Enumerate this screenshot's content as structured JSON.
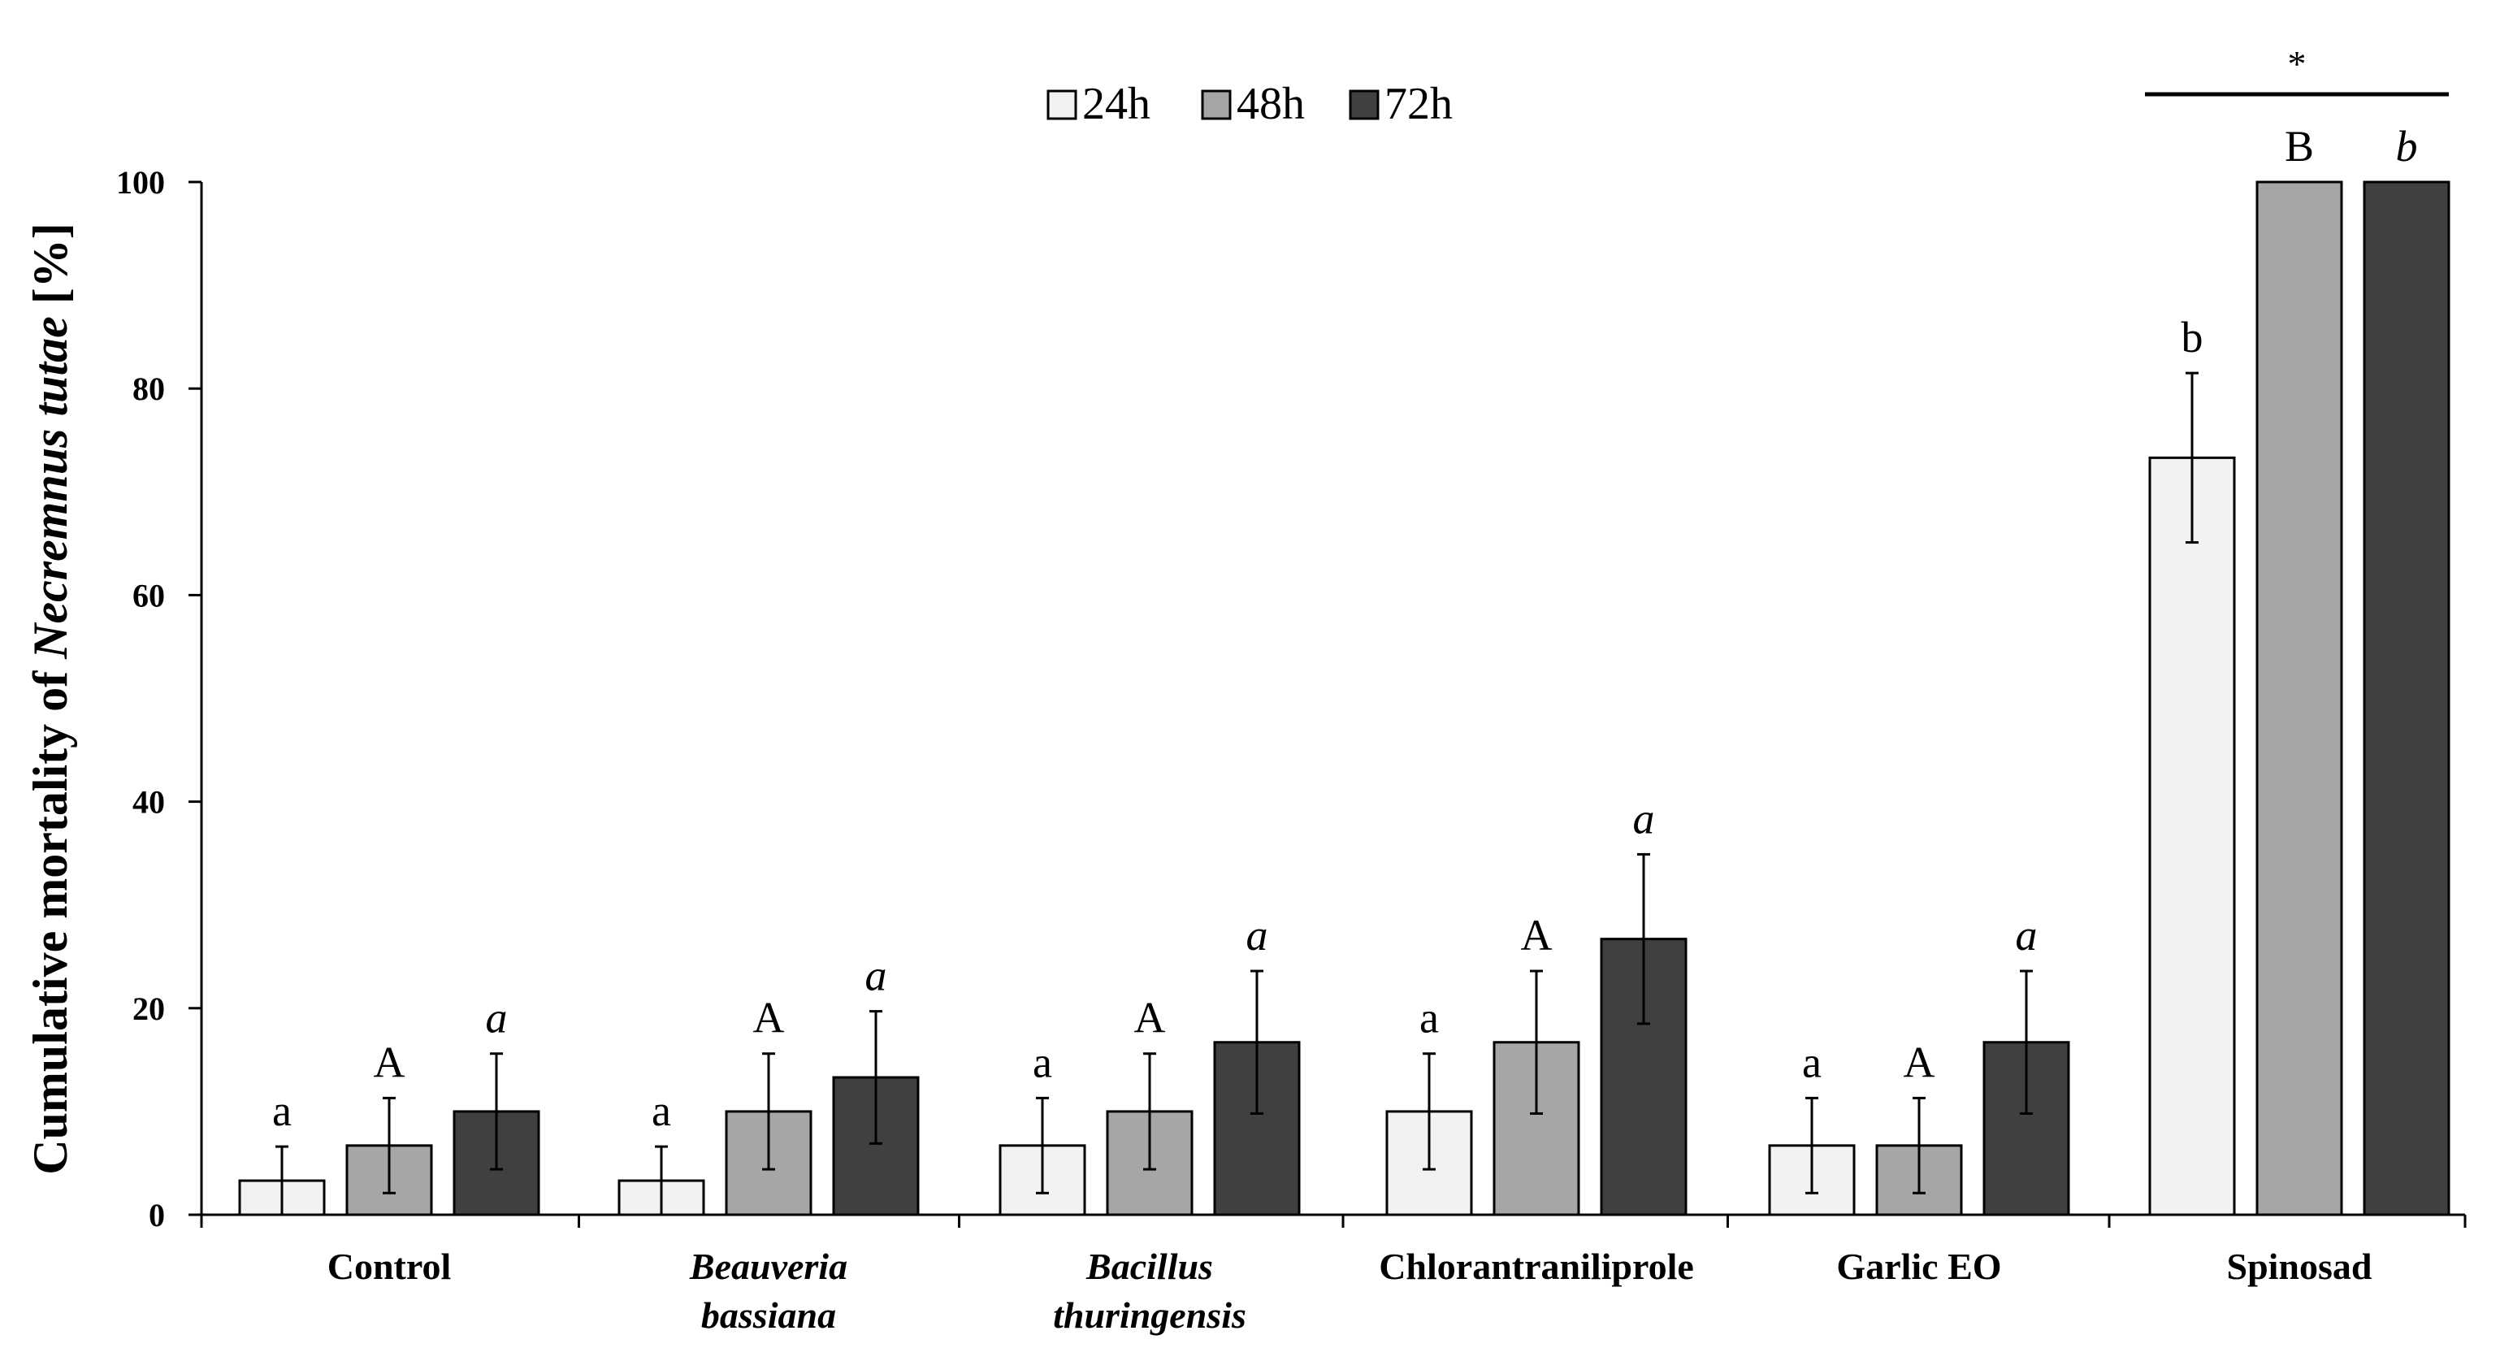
{
  "chart_data": {
    "type": "bar",
    "title": "",
    "ylabel_prefix": "Cumulative mortality of ",
    "ylabel_species": "Necremnus tutae",
    "ylabel_suffix": " [%]",
    "xlabel": "",
    "ylim": [
      0,
      100
    ],
    "yticks": [
      0,
      20,
      40,
      60,
      80,
      100
    ],
    "grid": false,
    "legend_position": "top-center",
    "categories": [
      {
        "lines": [
          "Control"
        ],
        "italic": false
      },
      {
        "lines": [
          "Beauveria",
          "bassiana"
        ],
        "italic": true
      },
      {
        "lines": [
          "Bacillus",
          "thuringensis"
        ],
        "italic": true
      },
      {
        "lines": [
          "Chlorantraniliprole"
        ],
        "italic": false
      },
      {
        "lines": [
          "Garlic EO"
        ],
        "italic": false
      },
      {
        "lines": [
          "Spinosad"
        ],
        "italic": false
      }
    ],
    "series": [
      {
        "name": "24h",
        "color": "#f2f2f2",
        "values": [
          3.3,
          3.3,
          6.7,
          10.0,
          6.7,
          73.3
        ],
        "errors": [
          3.3,
          3.3,
          4.6,
          5.6,
          4.6,
          8.2
        ],
        "letters": [
          "a",
          "a",
          "a",
          "a",
          "a",
          "b"
        ],
        "letter_style": "normal"
      },
      {
        "name": "48h",
        "color": "#a6a6a6",
        "values": [
          6.7,
          10.0,
          10.0,
          16.7,
          6.7,
          100
        ],
        "errors": [
          4.6,
          5.6,
          5.6,
          6.9,
          4.6,
          0
        ],
        "letters": [
          "A",
          "A",
          "A",
          "A",
          "A",
          "B"
        ],
        "letter_style": "normal"
      },
      {
        "name": "72h",
        "color": "#404040",
        "values": [
          10.0,
          13.3,
          16.7,
          26.7,
          16.7,
          100
        ],
        "errors": [
          5.6,
          6.4,
          6.9,
          8.2,
          6.9,
          0
        ],
        "letters": [
          "a",
          "a",
          "a",
          "a",
          "a",
          "b"
        ],
        "letter_style": "italic"
      }
    ],
    "significance_marker": "*"
  }
}
